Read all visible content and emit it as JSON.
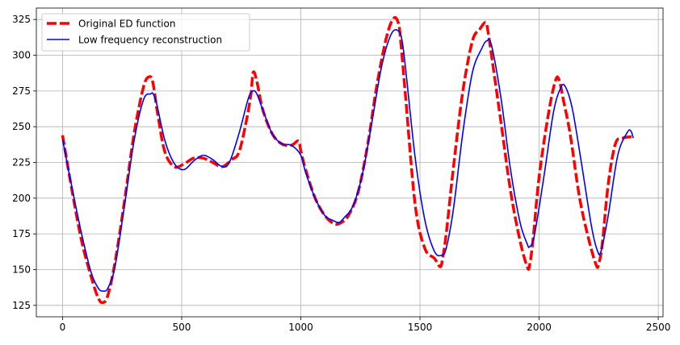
{
  "chart_data": {
    "type": "line",
    "title": "",
    "xlabel": "",
    "ylabel": "",
    "xlim": [
      -110,
      2520
    ],
    "ylim": [
      117,
      333
    ],
    "xticks": [
      0,
      500,
      1000,
      1500,
      2000,
      2500
    ],
    "yticks": [
      125,
      150,
      175,
      200,
      225,
      250,
      275,
      300,
      325
    ],
    "grid": true,
    "legend_position": "upper-left",
    "series": [
      {
        "name": "Original ED function",
        "color": "#ff0000",
        "style": "dashed",
        "x": [
          0,
          40,
          80,
          120,
          150,
          170,
          190,
          220,
          260,
          300,
          340,
          365,
          380,
          400,
          430,
          470,
          510,
          550,
          590,
          630,
          670,
          710,
          740,
          770,
          790,
          800,
          815,
          840,
          880,
          920,
          960,
          990,
          1000,
          1020,
          1060,
          1100,
          1140,
          1170,
          1200,
          1240,
          1280,
          1320,
          1360,
          1390,
          1410,
          1420,
          1440,
          1480,
          1520,
          1560,
          1585,
          1595,
          1610,
          1640,
          1680,
          1720,
          1750,
          1775,
          1785,
          1800,
          1840,
          1880,
          1920,
          1950,
          1960,
          1975,
          2000,
          2040,
          2070,
          2085,
          2100,
          2130,
          2170,
          2210,
          2240,
          2250,
          2265,
          2290,
          2320,
          2350,
          2395
        ],
        "y": [
          244,
          205,
          170,
          145,
          130,
          127,
          132,
          155,
          198,
          245,
          278,
          285,
          280,
          258,
          232,
          222,
          224,
          228,
          228,
          225,
          222,
          227,
          232,
          253,
          272,
          288,
          282,
          262,
          245,
          238,
          237,
          240,
          233,
          220,
          200,
          188,
          182,
          183,
          188,
          204,
          237,
          280,
          313,
          326,
          322,
          308,
          270,
          195,
          165,
          158,
          152,
          158,
          175,
          221,
          275,
          310,
          318,
          323,
          317,
          300,
          253,
          205,
          170,
          152,
          153,
          172,
          215,
          260,
          283,
          282,
          270,
          245,
          200,
          170,
          153,
          154,
          168,
          210,
          238,
          242,
          243
        ]
      },
      {
        "name": "Low frequency reconstruction",
        "color": "#0000ff",
        "style": "solid",
        "x": [
          0,
          40,
          80,
          120,
          150,
          170,
          190,
          220,
          260,
          300,
          340,
          370,
          380,
          395,
          430,
          470,
          510,
          550,
          590,
          630,
          670,
          700,
          740,
          780,
          800,
          815,
          840,
          880,
          920,
          960,
          1000,
          1020,
          1060,
          1100,
          1140,
          1160,
          1180,
          1220,
          1260,
          1300,
          1340,
          1380,
          1410,
          1425,
          1440,
          1480,
          1520,
          1560,
          1590,
          1610,
          1640,
          1680,
          1720,
          1760,
          1780,
          1800,
          1840,
          1880,
          1920,
          1950,
          1960,
          1980,
          2020,
          2060,
          2090,
          2110,
          2140,
          2180,
          2220,
          2245,
          2260,
          2290,
          2330,
          2370,
          2385,
          2395
        ],
        "y": [
          241,
          207,
          175,
          148,
          137,
          135,
          137,
          152,
          195,
          240,
          269,
          273,
          273,
          266,
          240,
          224,
          220,
          226,
          230,
          227,
          222,
          225,
          245,
          270,
          275,
          273,
          262,
          245,
          238,
          237,
          230,
          218,
          200,
          188,
          184,
          183,
          186,
          195,
          218,
          255,
          293,
          315,
          317,
          310,
          290,
          228,
          185,
          163,
          160,
          165,
          192,
          246,
          288,
          305,
          310,
          307,
          270,
          220,
          183,
          168,
          166,
          174,
          215,
          260,
          277,
          278,
          262,
          222,
          180,
          163,
          163,
          188,
          230,
          246,
          247,
          242
        ]
      }
    ]
  }
}
